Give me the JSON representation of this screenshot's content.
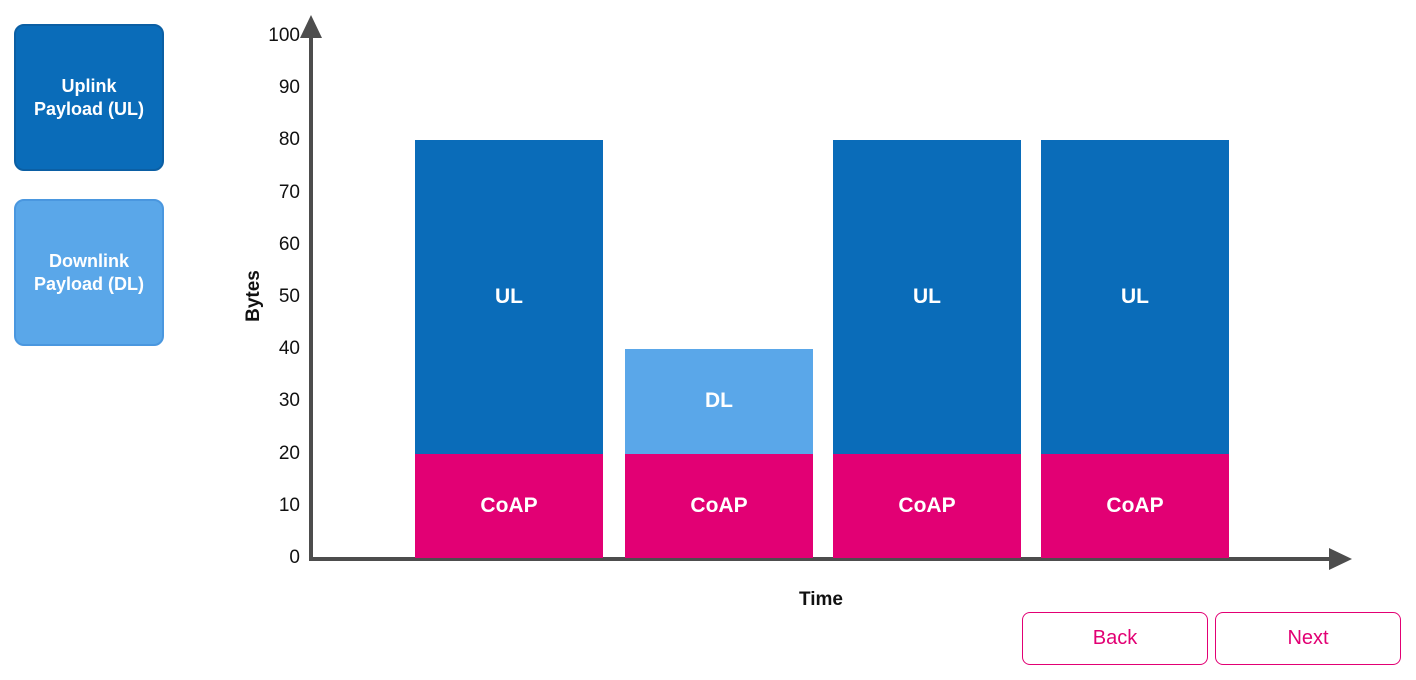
{
  "legend": {
    "items": [
      {
        "id": "uplink",
        "lines": [
          "Uplink",
          "Payload (UL)"
        ],
        "color": "#0a6cb9",
        "border": "#0b5fa4"
      },
      {
        "id": "downlink",
        "lines": [
          "Downlink",
          "Payload (DL)"
        ],
        "color": "#5aa7e9",
        "border": "#4a97df"
      }
    ]
  },
  "chart_data": {
    "type": "bar",
    "stacked": true,
    "title": "",
    "xlabel": "Time",
    "ylabel": "Bytes",
    "ylim": [
      0,
      100
    ],
    "y_ticks": [
      0,
      10,
      20,
      30,
      40,
      50,
      60,
      70,
      80,
      90,
      100
    ],
    "x_tick_labels": [],
    "grid": false,
    "axis_color": "#4d4d4d",
    "series_colors": {
      "CoAP": "#e20074",
      "UL": "#0a6cb9",
      "DL": "#5aa7e9"
    },
    "bars": [
      {
        "total": 80,
        "segments": [
          {
            "name": "CoAP",
            "value": 20
          },
          {
            "name": "UL",
            "value": 60
          }
        ]
      },
      {
        "total": 40,
        "segments": [
          {
            "name": "CoAP",
            "value": 20
          },
          {
            "name": "DL",
            "value": 20
          }
        ]
      },
      {
        "total": 80,
        "segments": [
          {
            "name": "CoAP",
            "value": 20
          },
          {
            "name": "UL",
            "value": 60
          }
        ]
      },
      {
        "total": 80,
        "segments": [
          {
            "name": "CoAP",
            "value": 20
          },
          {
            "name": "UL",
            "value": 60
          }
        ]
      }
    ]
  },
  "footer": {
    "back_label": "Back",
    "next_label": "Next",
    "accent": "#e20074"
  }
}
